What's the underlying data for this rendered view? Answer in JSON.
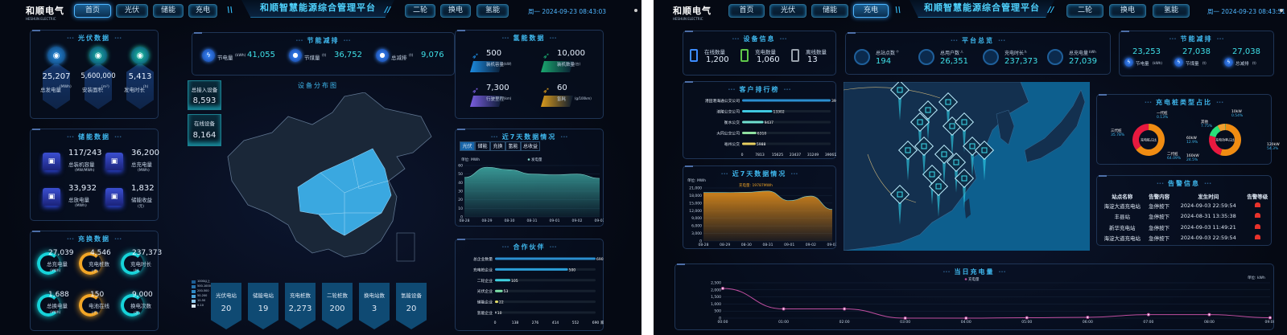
{
  "colors": {
    "accent": "#3fb8ee",
    "teal": "#16d3d9",
    "orange": "#f3a626",
    "alarm": "#e8322b",
    "map_highlight": "#3aa8e0"
  },
  "left": {
    "header": {
      "logo": "和顺电气",
      "logo_sub": "HESHUN ELECTRIC",
      "nav_left": [
        "首页",
        "光伏",
        "储能",
        "充电"
      ],
      "nav_right": [
        "二轮",
        "换电",
        "氢能"
      ],
      "active": "首页",
      "title": "和顺智慧能源综合管理平台",
      "datetime": "周一 2024-09-23 08:43:03"
    },
    "pv": {
      "title": "光伏数据",
      "items": [
        {
          "value": "25,207",
          "label": "总发电量",
          "unit": "(MWh)",
          "icon": "solar-panel-icon"
        },
        {
          "value": "5,600,000",
          "label": "安装面积",
          "unit": "(m²)",
          "icon": "home-icon"
        },
        {
          "value": "5,413",
          "label": "发电时长",
          "unit": "(h)",
          "icon": "document-icon"
        }
      ]
    },
    "storage": {
      "title": "储能数据",
      "items": [
        {
          "value": "117/243",
          "label": "总装机容量",
          "unit": "(MW/MWh)",
          "icon": "refresh-icon"
        },
        {
          "value": "36,200",
          "label": "总充电量",
          "unit": "(MWh)",
          "icon": "battery-icon"
        },
        {
          "value": "33,932",
          "label": "总放电量",
          "unit": "(MWh)",
          "icon": "warning-icon"
        },
        {
          "value": "1,832",
          "label": "储能收益",
          "unit": "(元)",
          "icon": "receipt-icon"
        }
      ]
    },
    "charging": {
      "title": "充换数据",
      "items": [
        {
          "value": "27,039",
          "label": "总充电量",
          "unit": "(kWh)",
          "color": "teal"
        },
        {
          "value": "4,546",
          "label": "充电桩数",
          "unit": "(个)",
          "color": "orange"
        },
        {
          "value": "237,373",
          "label": "充电时长",
          "unit": "(h)",
          "color": "teal"
        },
        {
          "value": "1,688",
          "label": "总换电量",
          "unit": "(kWh)",
          "color": "teal"
        },
        {
          "value": "150",
          "label": "电池在线",
          "unit": "(个)",
          "color": "orange"
        },
        {
          "value": "9,000",
          "label": "换电次数",
          "unit": "(次)",
          "color": "teal"
        }
      ]
    },
    "saving": {
      "title": "节能减排",
      "items": [
        {
          "label": "节电量",
          "unit": "(kWh)",
          "value": "41,055",
          "icon": "lightning-icon"
        },
        {
          "label": "节煤量",
          "unit": "(t)",
          "value": "36,752",
          "icon": "coal-icon"
        },
        {
          "label": "总减排",
          "unit": "(t)",
          "value": "9,076",
          "icon": "cloud-icon"
        }
      ]
    },
    "map": {
      "title": "设备分布图",
      "total_label": "总接入设备",
      "total": "8,593",
      "online_label": "在线设备",
      "online": "8,164",
      "legend": [
        "1000以上",
        "500-1000",
        "200-500",
        "50-200",
        "10-50",
        "0-10"
      ],
      "stats": [
        {
          "label": "光伏电站",
          "value": "20"
        },
        {
          "label": "储能电站",
          "value": "19"
        },
        {
          "label": "充电桩数",
          "value": "2,273"
        },
        {
          "label": "二轮桩数",
          "value": "200"
        },
        {
          "label": "换电站数",
          "value": "3"
        },
        {
          "label": "氢能设备",
          "value": "20"
        }
      ]
    },
    "hydrogen": {
      "title": "氢能数据",
      "items": [
        {
          "value": "500",
          "label": "装机容量",
          "unit": "(kW)",
          "color": "#1c8be0"
        },
        {
          "value": "10,000",
          "label": "装机数量",
          "unit": "(台)",
          "color": "#1aa86f"
        },
        {
          "value": "7,300",
          "label": "行驶里程",
          "unit": "(km)",
          "color": "#7a5ee0"
        },
        {
          "value": "60",
          "label": "氢耗",
          "unit": "(g/100km)",
          "color": "#d99a1c"
        }
      ]
    },
    "week": {
      "title": "近7天数据情况",
      "tabs": [
        "光伏",
        "储能",
        "充换",
        "氢能",
        "总收益"
      ],
      "active_tab": "光伏"
    },
    "partners": {
      "title": "合作伙伴"
    }
  },
  "right": {
    "header": {
      "logo": "和顺电气",
      "logo_sub": "HESHUN ELECTRIC",
      "nav_left": [
        "首页",
        "光伏",
        "储能",
        "充电"
      ],
      "nav_right": [
        "二轮",
        "换电",
        "氢能"
      ],
      "active": "充电",
      "title": "和顺智慧能源综合管理平台",
      "datetime": "周一 2024-09-23 08:43:51"
    },
    "device": {
      "title": "设备信息",
      "items": [
        {
          "label": "在线数量",
          "value": "1,200",
          "color": "#3d8cff"
        },
        {
          "label": "充电数量",
          "value": "1,060",
          "color": "#5fc84a"
        },
        {
          "label": "离线数量",
          "value": "13",
          "color": "#9aa3ad"
        }
      ]
    },
    "overview": {
      "title": "平台总览",
      "items": [
        {
          "label": "总站点数",
          "unit": "个",
          "value": "194",
          "icon": "station-icon"
        },
        {
          "label": "总用户数",
          "unit": "人",
          "value": "26,351",
          "icon": "user-icon"
        },
        {
          "label": "充电时长",
          "unit": "h",
          "value": "237,373",
          "icon": "clock-icon"
        },
        {
          "label": "总充电量",
          "unit": "kWh",
          "value": "27,039",
          "icon": "battery-icon"
        }
      ]
    },
    "saving": {
      "title": "节能减排",
      "items": [
        {
          "value": "23,253",
          "label": "节电量",
          "unit": "(kWh)"
        },
        {
          "value": "27,038",
          "label": "节煤量",
          "unit": "(t)"
        },
        {
          "value": "27,038",
          "label": "总减排",
          "unit": "(t)"
        }
      ]
    },
    "ranking": {
      "title": "客户排行榜"
    },
    "week": {
      "title": "近7天数据情况"
    },
    "pie": {
      "title": "充电桩类型占比"
    },
    "alarm": {
      "title": "告警信息",
      "headers": [
        "站点名称",
        "告警内容",
        "发生时间",
        "告警等级"
      ],
      "rows": [
        [
          "海淀大道充电站",
          "急停按下",
          "2024-09-03 22:59:54"
        ],
        [
          "丰县站",
          "急停按下",
          "2024-08-31 13:35:38"
        ],
        [
          "新华充电站",
          "急停按下",
          "2024-09-03 11:49:21"
        ],
        [
          "海淀大道充电站",
          "急停按下",
          "2024-09-03 22:59:54"
        ]
      ]
    },
    "daily": {
      "title": "当日充电量"
    }
  },
  "chart_data": [
    {
      "id": "left-week",
      "type": "area",
      "xlabel": "",
      "ylabel": "单位: MWh",
      "legend": "发电量",
      "x": [
        "08-28",
        "08-29",
        "08-30",
        "08-31",
        "09-01",
        "09-02",
        "09-03"
      ],
      "series": [
        {
          "name": "发电量",
          "values": [
            46,
            58,
            55,
            50,
            49,
            50,
            45
          ]
        }
      ],
      "ylim": [
        0,
        60
      ],
      "yticks": [
        0,
        10,
        20,
        30,
        40,
        50,
        60
      ],
      "color": "#3a9e9a"
    },
    {
      "id": "partners",
      "type": "bar",
      "orientation": "horizontal",
      "categories": [
        "总企业数量",
        "充电桩企业",
        "二轮企业",
        "光伏企业",
        "储能企业",
        "氢能企业"
      ],
      "values": [
        690,
        500,
        105,
        53,
        22,
        10
      ],
      "xticks": [
        0,
        138,
        276,
        414,
        552,
        690
      ],
      "unit": "家",
      "colors": [
        "#2b8fd0",
        "#2b9fd8",
        "#3fd0e0",
        "#7de0a8",
        "#e6e06a",
        "#9aa3ad"
      ]
    },
    {
      "id": "ranking",
      "type": "bar",
      "orientation": "horizontal",
      "categories": [
        "港田港海通公交公司",
        "涪陵公交公司",
        "衡水公交",
        "大同公交公司",
        "亳州公交"
      ],
      "values": [
        39561,
        13302,
        9437,
        6310,
        5988
      ],
      "xticks": [
        0,
        7813,
        15625,
        23437,
        31249,
        39061
      ],
      "unit": "次",
      "colors": [
        "#2b8fd0",
        "#3fc8e0",
        "#6fe0d0",
        "#8fe0a0",
        "#e8d060"
      ]
    },
    {
      "id": "right-week",
      "type": "area",
      "ylabel": "单位: MWh",
      "annotation": "充电量: 19787MWh",
      "x": [
        "08-28",
        "08-29",
        "08-30",
        "08-31",
        "09-01",
        "09-02",
        "09-03"
      ],
      "series": [
        {
          "name": "充电量",
          "values": [
            19200,
            19200,
            19300,
            19800,
            16000,
            17800,
            12500
          ]
        }
      ],
      "ylim": [
        0,
        21000
      ],
      "yticks": [
        0,
        3000,
        6000,
        9000,
        12000,
        15000,
        18000,
        21000
      ],
      "color": "#d9891c"
    },
    {
      "id": "pie-type",
      "type": "pie",
      "center_label": "充电桩占比",
      "slices": [
        {
          "name": "一代桩",
          "value": 0.13,
          "color": "#2fc07a"
        },
        {
          "name": "二代桩",
          "value": 64.09,
          "color": "#f08c12"
        },
        {
          "name": "三代桩",
          "value": 35.78,
          "color": "#e8193f"
        }
      ]
    },
    {
      "id": "pie-power",
      "type": "pie",
      "center_label": "充电功率占比",
      "slices": [
        {
          "name": "10kW",
          "value": 0.54,
          "color": "#2fc07a"
        },
        {
          "name": "120kW",
          "value": 54.3,
          "color": "#f08c12"
        },
        {
          "name": "160kW",
          "value": 24.5,
          "color": "#e8193f"
        },
        {
          "name": "60kW",
          "value": 12.9,
          "color": "#29e07a"
        },
        {
          "name": "其他",
          "value": 7.75,
          "color": "#f0a030"
        }
      ]
    },
    {
      "id": "daily",
      "type": "line",
      "legend": "充电量",
      "ylabel": "单位: kWh",
      "x": [
        "00:00",
        "01:00",
        "02:00",
        "03:00",
        "04:00",
        "05:00",
        "06:00",
        "07:00",
        "08:00",
        "09:00"
      ],
      "series": [
        {
          "name": "充电量",
          "values": [
            2100,
            650,
            650,
            0,
            0,
            30,
            60,
            250,
            250,
            30
          ]
        }
      ],
      "ylim": [
        0,
        2500
      ],
      "yticks": [
        0,
        500,
        1000,
        1500,
        2000,
        2500
      ],
      "color": "#c04ea0"
    }
  ]
}
